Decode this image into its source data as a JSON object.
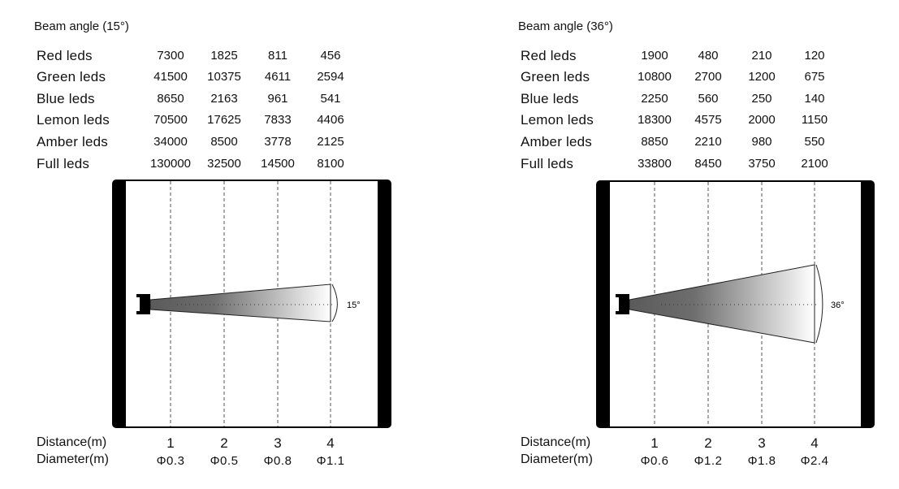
{
  "panels": [
    {
      "title": "Beam angle (15°)",
      "angle_label": "15°",
      "beam_angle_deg": 15,
      "rows": [
        {
          "label": "Red leds",
          "values": [
            "7300",
            "1825",
            "811",
            "456"
          ]
        },
        {
          "label": "Green leds",
          "values": [
            "41500",
            "10375",
            "4611",
            "2594"
          ]
        },
        {
          "label": "Blue leds",
          "values": [
            "8650",
            "2163",
            "961",
            "541"
          ]
        },
        {
          "label": "Lemon leds",
          "values": [
            "70500",
            "17625",
            "7833",
            "4406"
          ]
        },
        {
          "label": "Amber leds",
          "values": [
            "34000",
            "8500",
            "3778",
            "2125"
          ]
        },
        {
          "label": "Full leds",
          "values": [
            "130000",
            "32500",
            "14500",
            "8100"
          ]
        }
      ],
      "distance_label": "Distance(m)",
      "diameter_label": "Diameter(m)",
      "distances": [
        "1",
        "2",
        "3",
        "4"
      ],
      "diameters": [
        "Φ0.3",
        "Φ0.5",
        "Φ0.8",
        "Φ1.1"
      ]
    },
    {
      "title": "Beam angle (36°)",
      "angle_label": "36°",
      "beam_angle_deg": 36,
      "rows": [
        {
          "label": "Red leds",
          "values": [
            "1900",
            "480",
            "210",
            "120"
          ]
        },
        {
          "label": "Green leds",
          "values": [
            "10800",
            "2700",
            "1200",
            "675"
          ]
        },
        {
          "label": "Blue leds",
          "values": [
            "2250",
            "560",
            "250",
            "140"
          ]
        },
        {
          "label": "Lemon leds",
          "values": [
            "18300",
            "4575",
            "2000",
            "1150"
          ]
        },
        {
          "label": "Amber leds",
          "values": [
            "8850",
            "2210",
            "980",
            "550"
          ]
        },
        {
          "label": "Full leds",
          "values": [
            "33800",
            "8450",
            "3750",
            "2100"
          ]
        }
      ],
      "distance_label": "Distance(m)",
      "diameter_label": "Diameter(m)",
      "distances": [
        "1",
        "2",
        "3",
        "4"
      ],
      "diameters": [
        "Φ0.6",
        "Φ1.2",
        "Φ1.8",
        "Φ2.4"
      ]
    }
  ]
}
